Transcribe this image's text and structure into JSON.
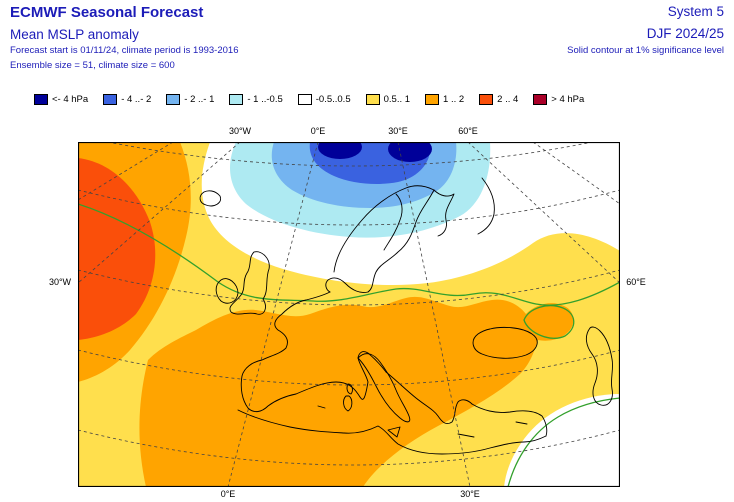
{
  "header": {
    "title": "ECMWF Seasonal Forecast",
    "subtitle": "Mean MSLP anomaly",
    "forecast_line": "Forecast start is 01/11/24, climate period is 1993-2016",
    "ensemble_line": "Ensemble size = 51, climate size = 600",
    "system": "System 5",
    "period": "DJF 2024/25",
    "significance_note": "Solid contour at 1% significance level"
  },
  "colors": {
    "header_text": "#1c1cb8",
    "contour_green": "#33a02c",
    "coastline": "#000000",
    "graticule": "#444444"
  },
  "legend": {
    "unit": "hPa",
    "items": [
      {
        "label": "<- 4 hPa",
        "color": "#000099"
      },
      {
        "label": "- 4 ..- 2",
        "color": "#3a62e0"
      },
      {
        "label": "- 2 ..- 1",
        "color": "#74b4f0"
      },
      {
        "label": "- 1 ..-0.5",
        "color": "#aeeaf2"
      },
      {
        "label": "-0.5..0.5",
        "color": "#ffffff"
      },
      {
        "label": "0.5.. 1",
        "color": "#ffdf4d"
      },
      {
        "label": "1 .. 2",
        "color": "#ffa400"
      },
      {
        "label": "2 .. 4",
        "color": "#fa4f0a"
      },
      {
        "label": "> 4 hPa",
        "color": "#aa0028"
      }
    ]
  },
  "map": {
    "top_labels": [
      "30°W",
      "0°E",
      "30°E",
      "60°E"
    ],
    "left_label": "30°W",
    "right_label": "60°E",
    "bottom_labels": [
      "0°E",
      "30°E"
    ]
  }
}
